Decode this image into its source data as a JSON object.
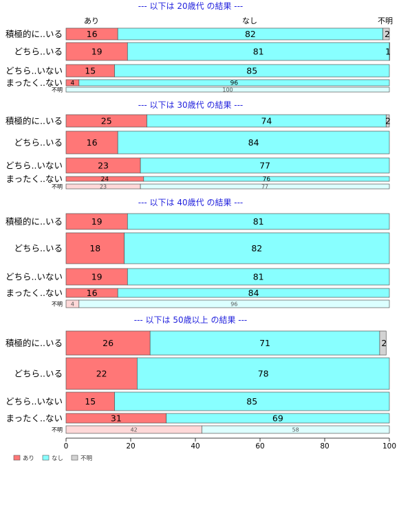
{
  "chart_data": {
    "type": "bar",
    "stacked": true,
    "orientation": "horizontal",
    "column_headers": [
      "あり",
      "なし",
      "不明"
    ],
    "xlim": [
      0,
      100
    ],
    "xticks": [
      0,
      20,
      40,
      60,
      80,
      100
    ],
    "legend": {
      "placement": "bottom-left",
      "items": [
        {
          "label": "あり",
          "color": "#ff7777"
        },
        {
          "label": "なし",
          "color": "#88ffff"
        },
        {
          "label": "不明",
          "color": "#d3d3d3"
        }
      ]
    },
    "colors": {
      "ari": "#ff7777",
      "nashi": "#88ffff",
      "fumei": "#d3d3d3",
      "ari_light": "#ffd8d8",
      "nashi_light": "#dcffff",
      "title": "#2222dd"
    },
    "panels": [
      {
        "title": "--- 以下は 20歳代 の結果 ---",
        "rows": [
          {
            "label": "積極的に..いる",
            "values": [
              16,
              82,
              2
            ]
          },
          {
            "label": "どちら..いる",
            "values": [
              19,
              81,
              1
            ]
          },
          {
            "label": "どちら..いない",
            "values": [
              15,
              85,
              0
            ]
          },
          {
            "label": "まったく..ない",
            "values": [
              4,
              96,
              0
            ]
          },
          {
            "label": "不明",
            "values": [
              0,
              100,
              0
            ]
          }
        ]
      },
      {
        "title": "--- 以下は 30歳代 の結果 ---",
        "rows": [
          {
            "label": "積極的に..いる",
            "values": [
              25,
              74,
              2
            ]
          },
          {
            "label": "どちら..いる",
            "values": [
              16,
              84,
              0
            ]
          },
          {
            "label": "どちら..いない",
            "values": [
              23,
              77,
              0
            ]
          },
          {
            "label": "まったく..ない",
            "values": [
              24,
              76,
              0
            ]
          },
          {
            "label": "不明",
            "values": [
              23,
              77,
              0
            ]
          }
        ]
      },
      {
        "title": "--- 以下は 40歳代 の結果 ---",
        "rows": [
          {
            "label": "積極的に..いる",
            "values": [
              19,
              81,
              0
            ]
          },
          {
            "label": "どちら..いる",
            "values": [
              18,
              82,
              0
            ]
          },
          {
            "label": "どちら..いない",
            "values": [
              19,
              81,
              0
            ]
          },
          {
            "label": "まったく..ない",
            "values": [
              16,
              84,
              0
            ]
          },
          {
            "label": "不明",
            "values": [
              4,
              96,
              0
            ]
          }
        ]
      },
      {
        "title": "--- 以下は 50歳以上 の結果 ---",
        "rows": [
          {
            "label": "積極的に..いる",
            "values": [
              26,
              71,
              2
            ]
          },
          {
            "label": "どちら..いる",
            "values": [
              22,
              78,
              0
            ]
          },
          {
            "label": "どちら..いない",
            "values": [
              15,
              85,
              0
            ]
          },
          {
            "label": "まったく..ない",
            "values": [
              31,
              69,
              0
            ]
          },
          {
            "label": "不明",
            "values": [
              42,
              58,
              0
            ]
          }
        ]
      }
    ]
  }
}
